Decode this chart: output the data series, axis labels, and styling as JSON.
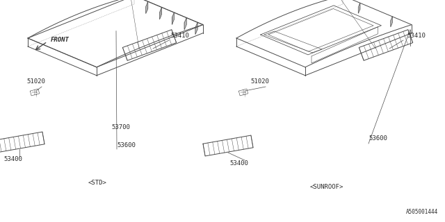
{
  "bg_color": "#ffffff",
  "line_color": "#4a4a4a",
  "text_color": "#2a2a2a",
  "fig_width": 6.4,
  "fig_height": 3.2,
  "footnote": "A505001444",
  "front_label": "FRONT",
  "std_label": "<STD>",
  "sunroof_label": "<SUNROOF>",
  "lw": 0.7,
  "hatch_lw": 0.4
}
